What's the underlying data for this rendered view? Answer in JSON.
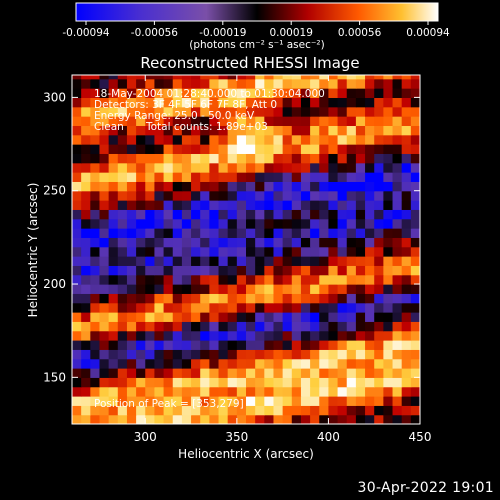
{
  "colorbar": {
    "tick_labels": [
      "-0.00094",
      "-0.00056",
      "-0.00019",
      "0.00019",
      "0.00056",
      "0.00094"
    ],
    "unit_label": "(photons cm⁻² s⁻¹ asec⁻²)"
  },
  "annotations": {
    "line1": "18-May-2004 01:28:40.000 to 01:30:04.000",
    "line2": "Detectors: 3F 4F 5F 6F 7F 8F, Att 0",
    "line3": "Energy Range: 25.0 - 50.0 keV",
    "line4_left": "Clean",
    "line4_right": "Total counts: 1.89e+03",
    "peak": "Position of Peak = [353,279]"
  },
  "footer": {
    "timestamp": "30-Apr-2022 19:01"
  },
  "chart_data": {
    "type": "heatmap",
    "title": "Reconstructed RHESSI Image",
    "xlabel": "Heliocentric X (arcsec)",
    "ylabel": "Heliocentric Y (arcsec)",
    "xlim": [
      260,
      450
    ],
    "ylim": [
      125,
      312
    ],
    "x_ticks": [
      300,
      350,
      400,
      450
    ],
    "y_ticks": [
      150,
      200,
      250,
      300
    ],
    "colormap": [
      "#0000ff",
      "#5a35b0",
      "#000000",
      "#c00000",
      "#ff6000",
      "#ffd040",
      "#ffffff"
    ],
    "value_range": [
      -0.00094,
      0.00094
    ],
    "peak_position": [
      353,
      279
    ],
    "bands": [
      {
        "y_center": 303,
        "amplitude": 0.0008
      },
      {
        "y_center": 268,
        "amplitude": 0.0007
      },
      {
        "y_center": 240,
        "amplitude": -0.0006
      },
      {
        "y_center": 218,
        "amplitude": -0.00045
      },
      {
        "y_center": 190,
        "amplitude": 0.00065
      },
      {
        "y_center": 175,
        "amplitude": -0.0005
      },
      {
        "y_center": 150,
        "amplitude": 0.00075
      },
      {
        "y_center": 132,
        "amplitude": 0.00085
      }
    ]
  }
}
